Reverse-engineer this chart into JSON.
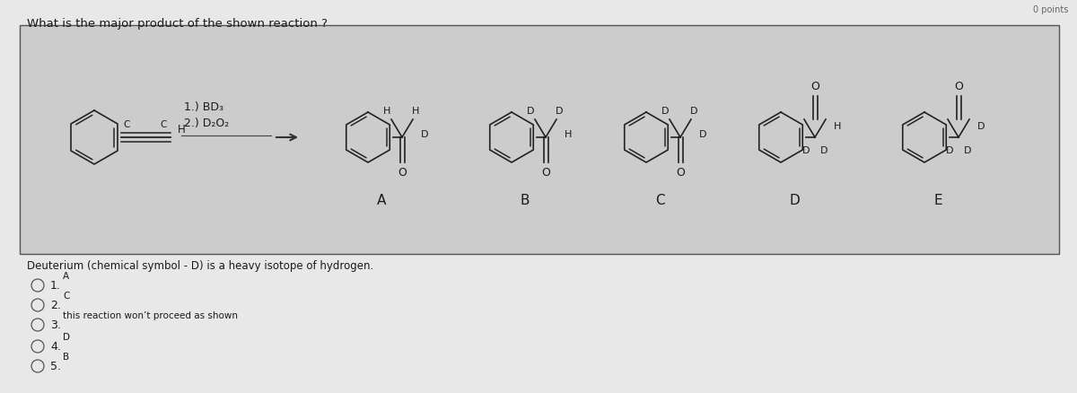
{
  "bg_color": "#e8e8e8",
  "box_bg": "#d8d8d8",
  "question_text": "What is the major product of the shown reaction ?",
  "reagents_line1": "1.) BD₃",
  "reagents_line2": "2.) D₂O₂",
  "note_text": "Deuterium (chemical symbol - D) is a heavy isotope of hydrogen.",
  "choices": [
    {
      "num": "1.",
      "label": "A"
    },
    {
      "num": "2.",
      "label": "C"
    },
    {
      "num": "3.",
      "label": "this reaction won’t proceed as shown"
    },
    {
      "num": "4.",
      "label": "D"
    },
    {
      "num": "5.",
      "label": "B"
    }
  ],
  "text_color": "#1a1a1a",
  "title_fontsize": 9.5,
  "choice_fontsize": 9,
  "note_fontsize": 8.5,
  "struct_fontsize": 8,
  "label_fontsize": 11
}
